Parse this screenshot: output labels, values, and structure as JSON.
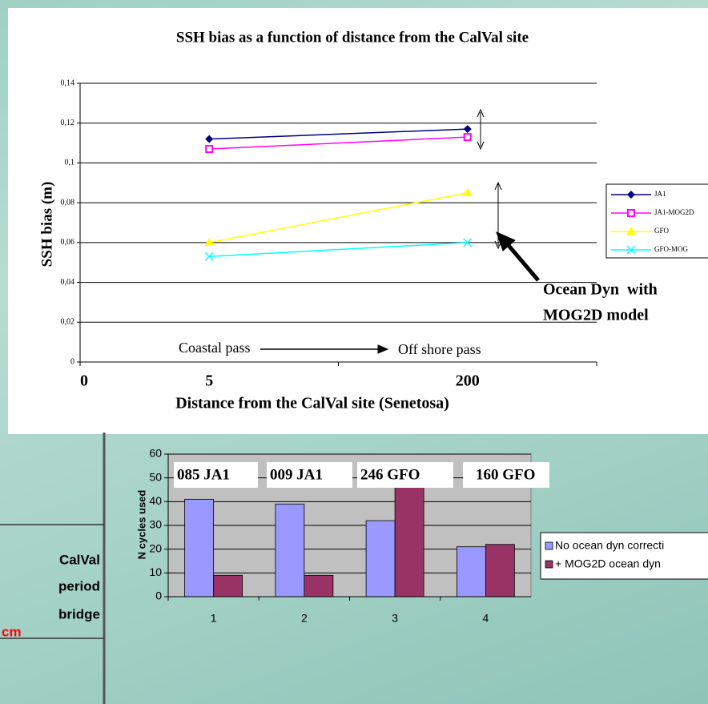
{
  "chart_data": [
    {
      "type": "line",
      "title": "SSH bias as a function of distance from the CalVal site",
      "y_label": "SSH bias (m)",
      "x_label": "Distance from the CalVal site (Senetosa)",
      "x_origin_label": "0",
      "categories": [
        "5",
        "200"
      ],
      "series": [
        {
          "name": "JA1",
          "color": "#000080",
          "marker": "diamond",
          "values": [
            0.112,
            0.117
          ]
        },
        {
          "name": "JA1-MOG2D",
          "color": "#ff00ff",
          "marker": "square",
          "values": [
            0.107,
            0.113
          ]
        },
        {
          "name": "GFO",
          "color": "#ffff00",
          "marker": "triangle",
          "values": [
            0.06,
            0.085
          ]
        },
        {
          "name": "GFO-MOG",
          "color": "#00ffff",
          "marker": "x",
          "values": [
            0.053,
            0.06
          ]
        }
      ],
      "ylim": [
        0,
        0.14
      ],
      "yticks": [
        0,
        {
          "value": 0.02,
          "label": "0,02"
        },
        {
          "value": 0.04,
          "label": "0,04"
        },
        {
          "value": 0.06,
          "label": "0,06"
        },
        {
          "value": 0.08,
          "label": "0,08"
        },
        {
          "value": 0.1,
          "label": "0,1"
        },
        {
          "value": 0.12,
          "label": "0,12"
        },
        {
          "value": 0.14,
          "label": "0,14"
        }
      ],
      "grid": true,
      "legend": "right",
      "annotations": [
        "Coastal pass",
        "Off shore pass",
        "Ocean Dyn  with",
        "MOG2D model"
      ]
    },
    {
      "type": "bar",
      "y_label": "N cycles used",
      "categories": [
        "1",
        "2",
        "3",
        "4"
      ],
      "bar_labels": [
        "085 JA1",
        "009 JA1",
        "246 GFO",
        "160 GFO"
      ],
      "series": [
        {
          "name": "No ocean dyn correcti",
          "color": "#9999ff",
          "values": [
            41,
            39,
            32,
            21
          ]
        },
        {
          "name": "+ MOG2D ocean dyn",
          "color": "#993366",
          "values": [
            9,
            9,
            48,
            22
          ]
        }
      ],
      "ylim": [
        0,
        60
      ],
      "yticks": [
        0,
        10,
        20,
        30,
        40,
        50,
        60
      ],
      "grid": true,
      "legend": "right"
    }
  ],
  "left_panel": {
    "lines": [
      "CalVal",
      "period",
      "bridge"
    ],
    "note": "cm"
  }
}
